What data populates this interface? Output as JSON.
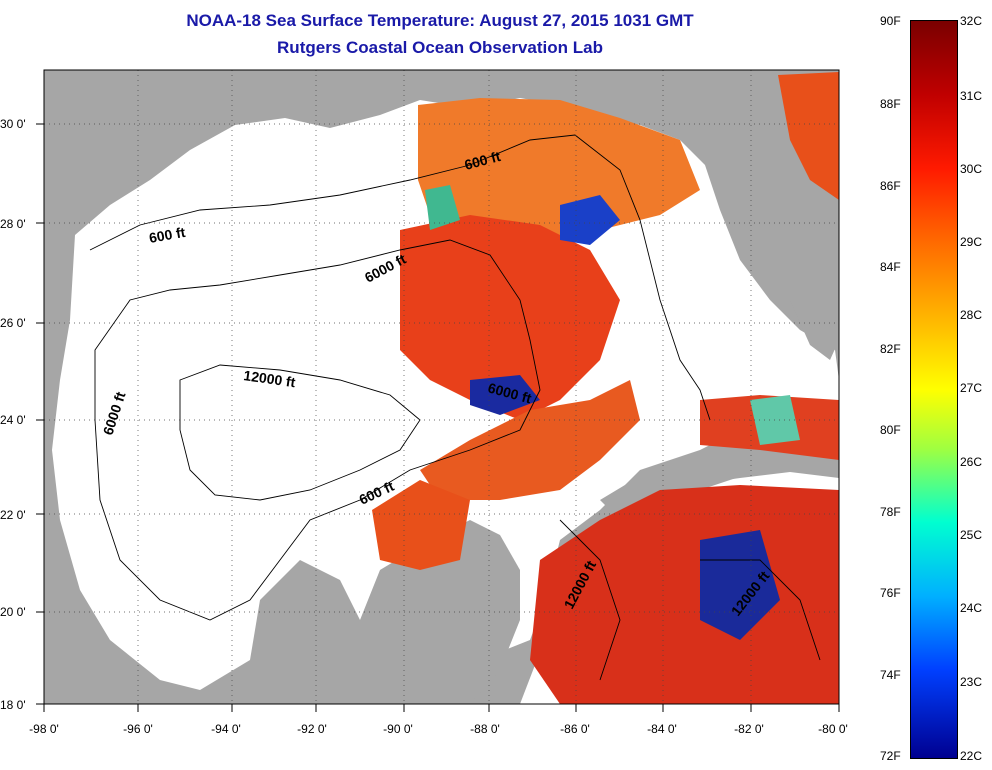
{
  "title_line1": "NOAA-18 Sea Surface Temperature:  August 27, 2015 1031 GMT",
  "title_line2": "Rutgers Coastal Ocean Observation Lab",
  "lon_ticks": [
    "-98 0'",
    "-96 0'",
    "-94 0'",
    "-92 0'",
    "-90 0'",
    "-88 0'",
    "-86 0'",
    "-84 0'",
    "-82 0'",
    "-80 0'"
  ],
  "lat_ticks": [
    "30 0'",
    "28 0'",
    "26 0'",
    "24 0'",
    "22 0'",
    "20 0'",
    "18 0'"
  ],
  "contour_labels": [
    "600 ft",
    "600 ft",
    "600 ft",
    "6000 ft",
    "6000 ft",
    "6000 ft",
    "12000 ft",
    "12000 ft",
    "12000 ft"
  ],
  "colorbar": {
    "fahrenheit": [
      "90F",
      "88F",
      "86F",
      "84F",
      "82F",
      "80F",
      "78F",
      "76F",
      "74F",
      "72F"
    ],
    "celsius": [
      "32C",
      "31C",
      "30C",
      "29C",
      "28C",
      "27C",
      "26C",
      "25C",
      "24C",
      "23C",
      "22C"
    ]
  },
  "colors": {
    "land": "#a6a6a6",
    "nodata": "#ffffff",
    "warm": "#e8501a",
    "title": "#1a1aa8"
  }
}
